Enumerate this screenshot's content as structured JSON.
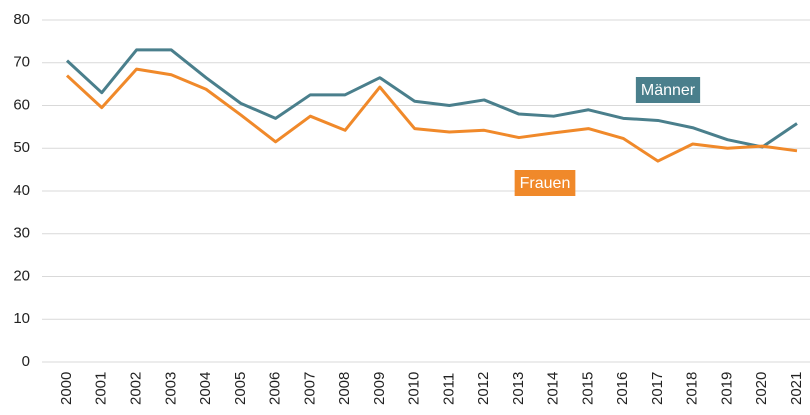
{
  "chart_data": {
    "type": "line",
    "categories": [
      "2000",
      "2001",
      "2002",
      "2003",
      "2004",
      "2005",
      "2006",
      "2007",
      "2008",
      "2009",
      "2010",
      "2011",
      "2012",
      "2013",
      "2014",
      "2015",
      "2016",
      "2017",
      "2018",
      "2019",
      "2020",
      "2021"
    ],
    "series": [
      {
        "name": "Männer",
        "color": "#4a7f8c",
        "values": [
          70.5,
          63,
          73,
          73,
          66.5,
          60.5,
          57,
          62.5,
          62.5,
          66.5,
          61,
          60,
          61.3,
          58,
          57.5,
          59,
          57,
          56.5,
          54.8,
          52,
          50.3,
          55.8
        ]
      },
      {
        "name": "Frauen",
        "color": "#f0892a",
        "values": [
          67,
          59.5,
          68.5,
          67.2,
          63.8,
          57.8,
          51.5,
          57.5,
          54.2,
          64.3,
          54.6,
          53.8,
          54.2,
          52.5,
          53.6,
          54.6,
          52.3,
          47,
          51,
          50,
          50.5,
          49.4
        ]
      }
    ],
    "ylim": [
      0,
      80
    ],
    "yticks": [
      0,
      10,
      20,
      30,
      40,
      50,
      60,
      70,
      80
    ],
    "grid": true
  }
}
